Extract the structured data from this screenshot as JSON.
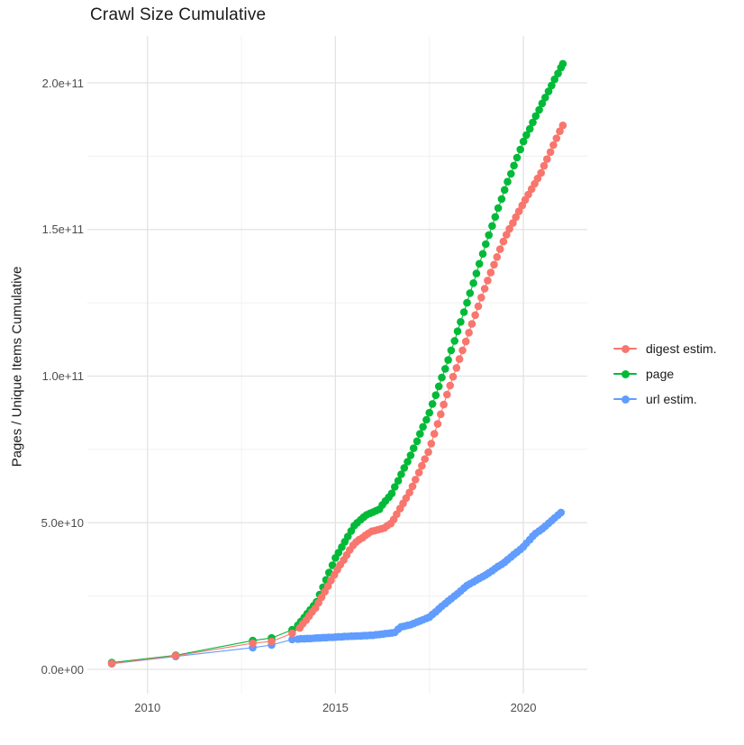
{
  "title": "Crawl Size Cumulative",
  "axes": {
    "y_title": "Pages / Unique Items Cumulative",
    "x_title": ""
  },
  "colors": {
    "background": "#FFFFFF",
    "grid_major": "#E3E3E3",
    "grid_minor": "#F0F0F0",
    "tick_text": "#4D4D4D",
    "title_text": "#1A1A1A"
  },
  "chart_data": {
    "type": "scatter",
    "title": "Crawl Size Cumulative",
    "xlabel": "",
    "ylabel": "Pages / Unique Items Cumulative",
    "grid": true,
    "legend_position": "right",
    "x_unit": "year",
    "y_unit": "count (values in billions, 1e9)",
    "xlim": [
      2008.4,
      2021.7
    ],
    "ylim_e9": [
      -8,
      216
    ],
    "x_major_ticks": [
      {
        "v": 2010,
        "label": "2010"
      },
      {
        "v": 2015,
        "label": "2015"
      },
      {
        "v": 2020,
        "label": "2020"
      }
    ],
    "x_minor_ticks": [
      2012.5,
      2017.5
    ],
    "y_major_ticks": [
      {
        "v": 0,
        "label": "0.0e+00"
      },
      {
        "v": 50,
        "label": "5.0e+10"
      },
      {
        "v": 100,
        "label": "1.0e+11"
      },
      {
        "v": 150,
        "label": "1.5e+11"
      },
      {
        "v": 200,
        "label": "2.0e+11"
      }
    ],
    "y_minor_ticks": [
      25,
      75,
      125,
      175
    ],
    "series": [
      {
        "name": "digest estim.",
        "color": "#F8766D",
        "points": [
          [
            2009.05,
            2.0
          ],
          [
            2010.75,
            4.6
          ],
          [
            2012.8,
            8.9
          ],
          [
            2013.3,
            9.5
          ],
          [
            2013.85,
            12.3
          ],
          [
            2014.05,
            14.1
          ],
          [
            2014.13,
            15.5
          ],
          [
            2014.22,
            16.8
          ],
          [
            2014.3,
            18.2
          ],
          [
            2014.38,
            19.6
          ],
          [
            2014.47,
            20.9
          ],
          [
            2014.55,
            22.7
          ],
          [
            2014.63,
            24.6
          ],
          [
            2014.72,
            26.5
          ],
          [
            2014.8,
            28.4
          ],
          [
            2014.88,
            30.3
          ],
          [
            2014.97,
            32.2
          ],
          [
            2015.05,
            34
          ],
          [
            2015.13,
            35.7
          ],
          [
            2015.22,
            37.3
          ],
          [
            2015.3,
            39
          ],
          [
            2015.38,
            40.7
          ],
          [
            2015.47,
            42.3
          ],
          [
            2015.55,
            43.4
          ],
          [
            2015.63,
            44.2
          ],
          [
            2015.72,
            44.9
          ],
          [
            2015.8,
            45.7
          ],
          [
            2015.88,
            46.4
          ],
          [
            2015.97,
            47.1
          ],
          [
            2016.05,
            47.3
          ],
          [
            2016.13,
            47.6
          ],
          [
            2016.22,
            47.9
          ],
          [
            2016.3,
            48.2
          ],
          [
            2016.38,
            49
          ],
          [
            2016.47,
            49.7
          ],
          [
            2016.55,
            51.1
          ],
          [
            2016.63,
            52.9
          ],
          [
            2016.72,
            54.8
          ],
          [
            2016.8,
            56.6
          ],
          [
            2016.88,
            58.4
          ],
          [
            2016.97,
            60.3
          ],
          [
            2017.05,
            62.4
          ],
          [
            2017.13,
            64.7
          ],
          [
            2017.22,
            67.1
          ],
          [
            2017.3,
            69.4
          ],
          [
            2017.38,
            71.7
          ],
          [
            2017.47,
            74.1
          ],
          [
            2017.55,
            77
          ],
          [
            2017.63,
            80.3
          ],
          [
            2017.72,
            83.7
          ],
          [
            2017.8,
            87
          ],
          [
            2017.88,
            90.3
          ],
          [
            2017.97,
            93.7
          ],
          [
            2018.05,
            96.8
          ],
          [
            2018.13,
            99.8
          ],
          [
            2018.22,
            102.8
          ],
          [
            2018.3,
            105.8
          ],
          [
            2018.38,
            108.8
          ],
          [
            2018.47,
            111.8
          ],
          [
            2018.55,
            114.8
          ],
          [
            2018.63,
            117.8
          ],
          [
            2018.72,
            120.8
          ],
          [
            2018.8,
            123.8
          ],
          [
            2018.88,
            126.8
          ],
          [
            2018.97,
            129.8
          ],
          [
            2019.05,
            132.6
          ],
          [
            2019.13,
            135.3
          ],
          [
            2019.22,
            138
          ],
          [
            2019.3,
            140.6
          ],
          [
            2019.38,
            143.3
          ],
          [
            2019.47,
            145.9
          ],
          [
            2019.55,
            148.2
          ],
          [
            2019.63,
            150.2
          ],
          [
            2019.72,
            152.2
          ],
          [
            2019.8,
            154.2
          ],
          [
            2019.88,
            156.2
          ],
          [
            2019.97,
            158.2
          ],
          [
            2020.05,
            160.1
          ],
          [
            2020.13,
            161.9
          ],
          [
            2020.22,
            163.8
          ],
          [
            2020.3,
            165.6
          ],
          [
            2020.38,
            167.4
          ],
          [
            2020.47,
            169.3
          ],
          [
            2020.55,
            171.7
          ],
          [
            2020.63,
            174
          ],
          [
            2020.72,
            176.4
          ],
          [
            2020.8,
            178.8
          ],
          [
            2020.88,
            181.1
          ],
          [
            2020.97,
            183.5
          ],
          [
            2021.05,
            185.5
          ]
        ]
      },
      {
        "name": "page",
        "color": "#00BA38",
        "points": [
          [
            2009.05,
            2.3
          ],
          [
            2010.75,
            4.8
          ],
          [
            2012.8,
            9.8
          ],
          [
            2013.3,
            10.7
          ],
          [
            2013.85,
            13.5
          ],
          [
            2014.0,
            15
          ],
          [
            2014.08,
            16.3
          ],
          [
            2014.17,
            17.7
          ],
          [
            2014.25,
            19
          ],
          [
            2014.33,
            20.3
          ],
          [
            2014.42,
            21.7
          ],
          [
            2014.5,
            23
          ],
          [
            2014.58,
            25.5
          ],
          [
            2014.67,
            28
          ],
          [
            2014.75,
            30.5
          ],
          [
            2014.83,
            33
          ],
          [
            2014.92,
            35.5
          ],
          [
            2015.0,
            38
          ],
          [
            2015.08,
            39.8
          ],
          [
            2015.17,
            41.7
          ],
          [
            2015.25,
            43.5
          ],
          [
            2015.33,
            45.3
          ],
          [
            2015.42,
            47.2
          ],
          [
            2015.5,
            49
          ],
          [
            2015.58,
            50
          ],
          [
            2015.67,
            51
          ],
          [
            2015.75,
            51.9
          ],
          [
            2015.83,
            52.7
          ],
          [
            2015.92,
            53.2
          ],
          [
            2016.0,
            53.6
          ],
          [
            2016.08,
            54.1
          ],
          [
            2016.17,
            54.6
          ],
          [
            2016.25,
            56.1
          ],
          [
            2016.33,
            57.4
          ],
          [
            2016.42,
            58.7
          ],
          [
            2016.5,
            60
          ],
          [
            2016.58,
            62.2
          ],
          [
            2016.67,
            64.3
          ],
          [
            2016.75,
            66.5
          ],
          [
            2016.83,
            68.7
          ],
          [
            2016.92,
            70.8
          ],
          [
            2017.0,
            73
          ],
          [
            2017.08,
            75.4
          ],
          [
            2017.17,
            77.8
          ],
          [
            2017.25,
            80.3
          ],
          [
            2017.33,
            82.7
          ],
          [
            2017.42,
            85.1
          ],
          [
            2017.5,
            87.5
          ],
          [
            2017.58,
            90.5
          ],
          [
            2017.67,
            93.5
          ],
          [
            2017.75,
            96.5
          ],
          [
            2017.83,
            99.5
          ],
          [
            2017.92,
            102.5
          ],
          [
            2018.0,
            105.5
          ],
          [
            2018.08,
            108.8
          ],
          [
            2018.17,
            112
          ],
          [
            2018.25,
            115.3
          ],
          [
            2018.33,
            118.5
          ],
          [
            2018.42,
            121.8
          ],
          [
            2018.5,
            125
          ],
          [
            2018.58,
            128.3
          ],
          [
            2018.67,
            131.7
          ],
          [
            2018.75,
            135
          ],
          [
            2018.83,
            138.3
          ],
          [
            2018.92,
            141.7
          ],
          [
            2019.0,
            145
          ],
          [
            2019.08,
            148.1
          ],
          [
            2019.17,
            151.2
          ],
          [
            2019.25,
            154.3
          ],
          [
            2019.33,
            157.3
          ],
          [
            2019.42,
            160.4
          ],
          [
            2019.5,
            163.5
          ],
          [
            2019.58,
            166.3
          ],
          [
            2019.67,
            169
          ],
          [
            2019.75,
            171.8
          ],
          [
            2019.83,
            174.5
          ],
          [
            2019.92,
            177.3
          ],
          [
            2020.0,
            180
          ],
          [
            2020.08,
            182.2
          ],
          [
            2020.17,
            184.3
          ],
          [
            2020.25,
            186.5
          ],
          [
            2020.33,
            188.7
          ],
          [
            2020.42,
            190.8
          ],
          [
            2020.5,
            193
          ],
          [
            2020.58,
            195
          ],
          [
            2020.67,
            197.1
          ],
          [
            2020.75,
            199.1
          ],
          [
            2020.83,
            201.2
          ],
          [
            2020.92,
            203.2
          ],
          [
            2021.0,
            205.2
          ],
          [
            2021.05,
            206.5
          ]
        ]
      },
      {
        "name": "url estim.",
        "color": "#619CFF",
        "points": [
          [
            2009.05,
            1.9
          ],
          [
            2010.75,
            4.4
          ],
          [
            2012.8,
            7.4
          ],
          [
            2013.3,
            8.3
          ],
          [
            2013.85,
            10.2
          ],
          [
            2014.0,
            10.3
          ],
          [
            2014.08,
            10.4
          ],
          [
            2014.17,
            10.4
          ],
          [
            2014.25,
            10.5
          ],
          [
            2014.33,
            10.5
          ],
          [
            2014.42,
            10.6
          ],
          [
            2014.5,
            10.7
          ],
          [
            2014.58,
            10.7
          ],
          [
            2014.67,
            10.8
          ],
          [
            2014.75,
            10.8
          ],
          [
            2014.83,
            10.9
          ],
          [
            2014.92,
            10.9
          ],
          [
            2015.0,
            11
          ],
          [
            2015.08,
            11.1
          ],
          [
            2015.17,
            11.1
          ],
          [
            2015.25,
            11.2
          ],
          [
            2015.33,
            11.2
          ],
          [
            2015.42,
            11.3
          ],
          [
            2015.5,
            11.3
          ],
          [
            2015.58,
            11.4
          ],
          [
            2015.67,
            11.4
          ],
          [
            2015.75,
            11.5
          ],
          [
            2015.83,
            11.5
          ],
          [
            2015.92,
            11.6
          ],
          [
            2016.0,
            11.6
          ],
          [
            2016.08,
            11.8
          ],
          [
            2016.17,
            11.9
          ],
          [
            2016.25,
            12
          ],
          [
            2016.33,
            12.2
          ],
          [
            2016.42,
            12.3
          ],
          [
            2016.5,
            12.4
          ],
          [
            2016.58,
            12.6
          ],
          [
            2016.67,
            13.7
          ],
          [
            2016.75,
            14.5
          ],
          [
            2016.83,
            14.7
          ],
          [
            2016.92,
            15
          ],
          [
            2017.0,
            15.2
          ],
          [
            2017.08,
            15.6
          ],
          [
            2017.17,
            16.1
          ],
          [
            2017.25,
            16.5
          ],
          [
            2017.33,
            16.9
          ],
          [
            2017.42,
            17.4
          ],
          [
            2017.5,
            17.8
          ],
          [
            2017.58,
            18.7
          ],
          [
            2017.67,
            19.6
          ],
          [
            2017.75,
            20.6
          ],
          [
            2017.83,
            21.5
          ],
          [
            2017.92,
            22.4
          ],
          [
            2018.0,
            23.3
          ],
          [
            2018.08,
            24.1
          ],
          [
            2018.17,
            25
          ],
          [
            2018.25,
            25.8
          ],
          [
            2018.33,
            26.7
          ],
          [
            2018.42,
            27.7
          ],
          [
            2018.5,
            28.6
          ],
          [
            2018.58,
            29.2
          ],
          [
            2018.67,
            29.8
          ],
          [
            2018.75,
            30.4
          ],
          [
            2018.83,
            31
          ],
          [
            2018.92,
            31.6
          ],
          [
            2019.0,
            32.2
          ],
          [
            2019.08,
            32.9
          ],
          [
            2019.17,
            33.6
          ],
          [
            2019.25,
            34.4
          ],
          [
            2019.33,
            35.1
          ],
          [
            2019.42,
            35.8
          ],
          [
            2019.5,
            36.5
          ],
          [
            2019.58,
            37.4
          ],
          [
            2019.67,
            38.3
          ],
          [
            2019.75,
            39.2
          ],
          [
            2019.83,
            40
          ],
          [
            2019.92,
            40.9
          ],
          [
            2020.0,
            41.8
          ],
          [
            2020.08,
            43
          ],
          [
            2020.17,
            44.2
          ],
          [
            2020.25,
            45.4
          ],
          [
            2020.33,
            46.4
          ],
          [
            2020.42,
            47.2
          ],
          [
            2020.5,
            47.9
          ],
          [
            2020.58,
            48.8
          ],
          [
            2020.67,
            49.8
          ],
          [
            2020.75,
            50.7
          ],
          [
            2020.83,
            51.6
          ],
          [
            2020.92,
            52.6
          ],
          [
            2021.0,
            53.5
          ]
        ]
      }
    ]
  }
}
